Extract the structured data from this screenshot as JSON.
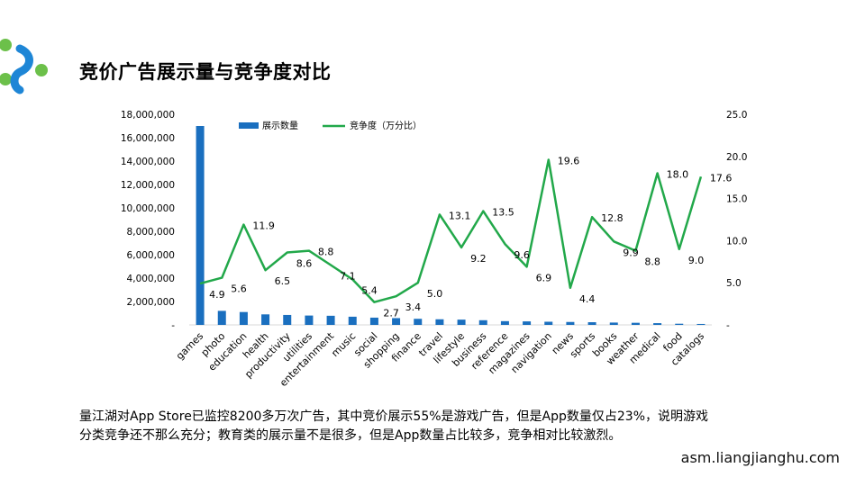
{
  "title": "竞价广告展示量与竞争度对比",
  "caption": {
    "line1": "量江湖对App Store已监控8200多万次广告，其中竞价展示55%是游戏广告，但是App数量仅占23%，说明游戏",
    "line2": "分类竞争还不那么充分；教育类的展示量不是很多，但是App数量占比较多，竞争相对比较激烈。"
  },
  "footer_url": "asm.liangjianghu.com",
  "colors": {
    "bar": "#1a6fbf",
    "line": "#22a84a",
    "logo_green": "#6cc04a",
    "logo_blue": "#1e86d6"
  },
  "chart_data": {
    "type": "bar+line",
    "categories": [
      "games",
      "photo",
      "education",
      "health",
      "productivity",
      "utilities",
      "entertainment",
      "music",
      "social",
      "shopping",
      "finance",
      "travel",
      "lifestyle",
      "business",
      "reference",
      "magazines",
      "navigation",
      "news",
      "sports",
      "books",
      "weather",
      "medical",
      "food",
      "catalogs"
    ],
    "series": [
      {
        "name": "展示数量",
        "type": "bar",
        "axis": "left",
        "values": [
          17000000,
          1200000,
          1100000,
          900000,
          850000,
          800000,
          780000,
          700000,
          620000,
          580000,
          520000,
          480000,
          450000,
          400000,
          320000,
          300000,
          270000,
          250000,
          230000,
          200000,
          180000,
          150000,
          100000,
          80000
        ]
      },
      {
        "name": "竞争度（万分比）",
        "type": "line",
        "axis": "right",
        "values": [
          4.9,
          5.6,
          11.9,
          6.5,
          8.6,
          8.8,
          7.1,
          5.4,
          2.7,
          3.4,
          5.0,
          13.1,
          9.2,
          13.5,
          9.6,
          6.9,
          19.6,
          4.4,
          12.8,
          9.9,
          8.8,
          18.0,
          9.0,
          17.6
        ]
      }
    ],
    "y_left": {
      "min": 0,
      "max": 18000000,
      "ticks": [
        "-",
        "2,000,000",
        "4,000,000",
        "6,000,000",
        "8,000,000",
        "10,000,000",
        "12,000,000",
        "14,000,000",
        "16,000,000",
        "18,000,000"
      ]
    },
    "y_right": {
      "min": 0,
      "max": 25,
      "ticks": [
        "-",
        "5.0",
        "10.0",
        "15.0",
        "20.0",
        "25.0"
      ]
    },
    "legend_position": "top-left",
    "grid": false
  }
}
